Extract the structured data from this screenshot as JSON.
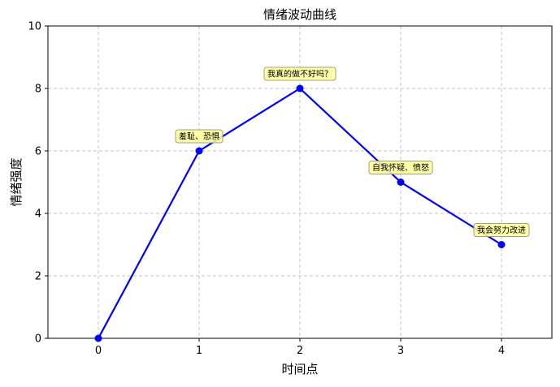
{
  "chart_data": {
    "type": "line",
    "title": "情绪波动曲线",
    "xlabel": "时间点",
    "ylabel": "情绪强度",
    "x": [
      0,
      1,
      2,
      3,
      4
    ],
    "series": [
      {
        "values": [
          0,
          6,
          8,
          5,
          3
        ]
      }
    ],
    "xlim": [
      -0.5,
      4.5
    ],
    "ylim": [
      0,
      10
    ],
    "xticks": [
      0,
      1,
      2,
      3,
      4
    ],
    "yticks": [
      0,
      2,
      4,
      6,
      8,
      10
    ],
    "grid": true,
    "line_color": "#0000ff",
    "annotation_fill": "#ffff99",
    "annotations": [
      {
        "x": 1,
        "y": 6,
        "text": "羞耻、恐惧"
      },
      {
        "x": 2,
        "y": 8,
        "text": "我真的做不好吗？"
      },
      {
        "x": 3,
        "y": 5,
        "text": "自我怀疑、愤怒"
      },
      {
        "x": 4,
        "y": 3,
        "text": "我会努力改进"
      }
    ]
  }
}
